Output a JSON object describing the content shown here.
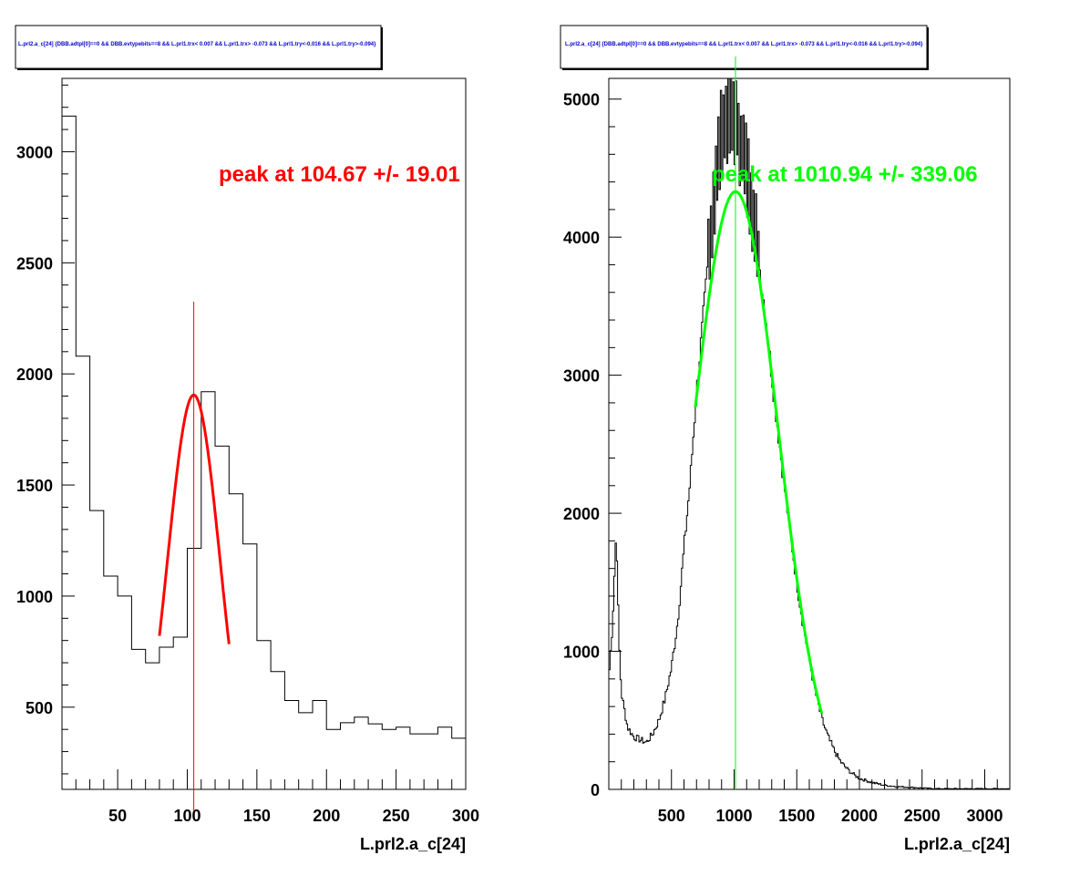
{
  "chart_data": [
    {
      "type": "histogram",
      "title": "L.prl2.a_c[24] {DBB.adtpl[0]==0 && DBB.evtypebits==8 &&  L.prl1.trx< 0.007 && L.prl1.trx> -0.073 && L.prl1.try<-0.016 && L.prl1.try>-0.094}",
      "xlabel": "L.prl2.a_c[24]",
      "ylabel": "",
      "xlim": [
        10,
        300
      ],
      "ylim": [
        130,
        3330
      ],
      "x_ticks": [
        "50",
        "100",
        "150",
        "200",
        "250",
        "300"
      ],
      "y_ticks": [
        "500",
        "1000",
        "1500",
        "2000",
        "2500",
        "3000"
      ],
      "bins": {
        "edges": [
          10,
          20,
          30,
          40,
          50,
          60,
          70,
          80,
          90,
          100,
          110,
          120,
          130,
          140,
          150,
          160,
          170,
          180,
          190,
          200,
          210,
          220,
          230,
          240,
          250,
          260,
          270,
          280,
          290,
          300
        ],
        "counts": [
          3160,
          2080,
          1385,
          1090,
          1000,
          760,
          700,
          770,
          815,
          1215,
          1920,
          1675,
          1460,
          1235,
          800,
          660,
          530,
          475,
          530,
          400,
          430,
          455,
          425,
          400,
          410,
          380,
          380,
          410,
          360
        ]
      },
      "fit": {
        "type": "gaussian",
        "color": "#ff0000",
        "mean": 104.67,
        "sigma": 19.01,
        "amplitude": 1905,
        "range": [
          80,
          130
        ]
      },
      "peak_marker": {
        "x": 104.67,
        "color": "#ff0000"
      },
      "annotation": "peak at 104.67 +/- 19.01"
    },
    {
      "type": "histogram",
      "title": "L.prl2.a_c[24] {DBB.adtpl[0]==0 && DBB.evtypebits==8 &&  L.prl1.trx< 0.007 && L.prl1.trx> -0.073 && L.prl1.try<-0.016 && L.prl1.try>-0.094}",
      "xlabel": "L.prl2.a_c[24]",
      "ylabel": "",
      "xlim": [
        0,
        3200
      ],
      "ylim": [
        0,
        5150
      ],
      "x_ticks": [
        "500",
        "1000",
        "1500",
        "2000",
        "2500",
        "3000"
      ],
      "y_ticks": [
        "0",
        "1000",
        "2000",
        "3000",
        "4000",
        "5000"
      ],
      "profile": {
        "bin_width": 10,
        "x": [
          0,
          30,
          60,
          80,
          100,
          150,
          200,
          250,
          300,
          350,
          400,
          450,
          500,
          550,
          600,
          650,
          700,
          750,
          800,
          850,
          900,
          950,
          1000,
          1050,
          1100,
          1150,
          1200,
          1250,
          1300,
          1350,
          1400,
          1450,
          1500,
          1550,
          1600,
          1650,
          1700,
          1750,
          1800,
          1850,
          1900,
          1950,
          2000,
          2100,
          2200,
          2300,
          2400,
          2500,
          2600
        ],
        "y": [
          800,
          1200,
          1900,
          1100,
          700,
          450,
          380,
          360,
          340,
          400,
          500,
          660,
          880,
          1220,
          1740,
          2240,
          2880,
          3380,
          3900,
          4380,
          4760,
          4880,
          4870,
          4700,
          4480,
          4200,
          3800,
          3440,
          3000,
          2600,
          2200,
          1850,
          1500,
          1200,
          940,
          700,
          510,
          380,
          280,
          200,
          150,
          110,
          80,
          50,
          30,
          20,
          15,
          10,
          5
        ]
      },
      "fit": {
        "type": "gaussian",
        "color": "#00ff00",
        "mean": 1010.94,
        "sigma": 339.06,
        "amplitude": 4330,
        "range": [
          690,
          1700
        ]
      },
      "peak_marker": {
        "x": 1010.94,
        "color": "#00ff00"
      },
      "annotation": "peak at 1010.94 +/- 339.06"
    }
  ]
}
